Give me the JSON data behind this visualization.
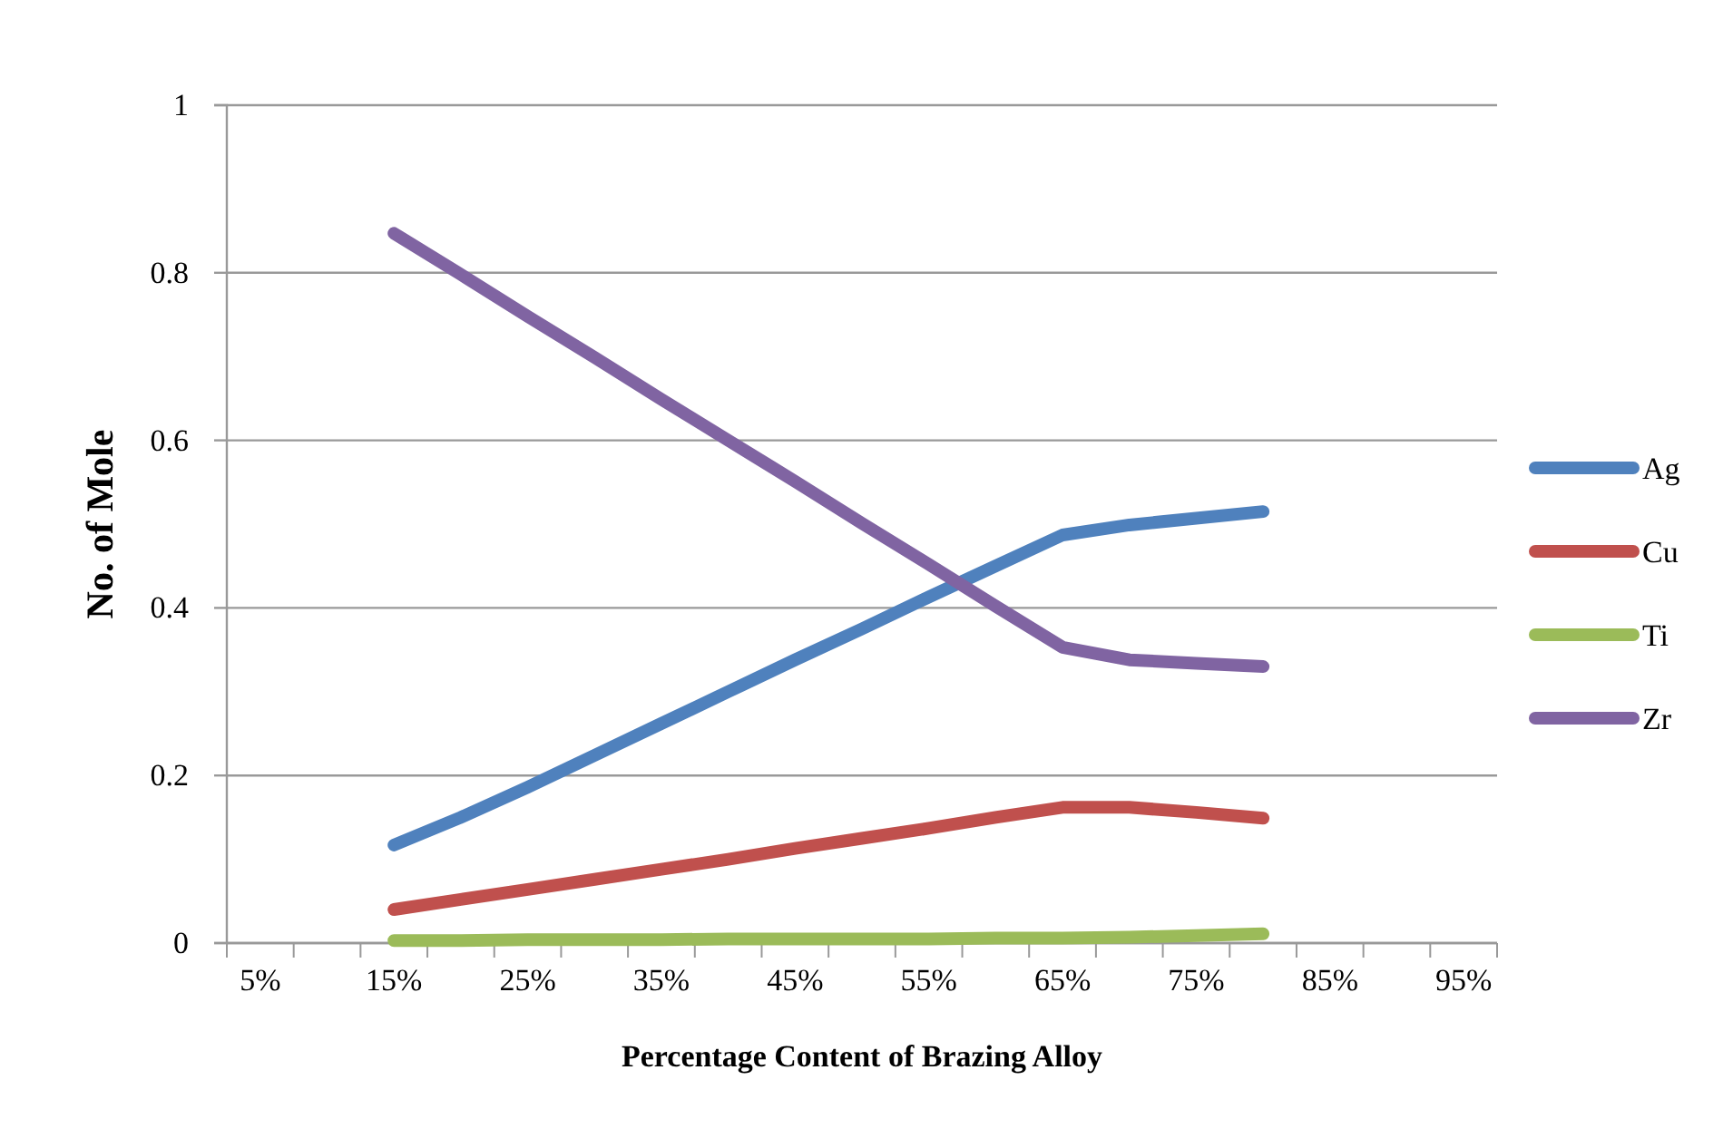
{
  "chart_data": {
    "type": "line",
    "xlabel": "Percentage Content of Brazing Alloy",
    "ylabel": "No. of Mole",
    "categories": [
      "5%",
      null,
      "15%",
      null,
      "25%",
      null,
      "35%",
      null,
      "45%",
      null,
      "55%",
      null,
      "65%",
      null,
      "75%",
      null,
      "85%",
      null,
      "95%"
    ],
    "ylim": [
      0,
      1
    ],
    "yticks": [
      0,
      0.2,
      0.4,
      0.6,
      0.8,
      1
    ],
    "grid": "y",
    "legend": "right",
    "series": [
      {
        "name": "Ag",
        "color": "#4f81bd",
        "values": [
          null,
          null,
          0.117,
          0.15,
          0.186,
          0.224,
          0.262,
          0.3,
          0.338,
          0.375,
          0.413,
          0.45,
          0.487,
          0.499,
          0.507,
          0.515,
          null,
          null,
          null
        ]
      },
      {
        "name": "Cu",
        "color": "#c0504d",
        "values": [
          null,
          null,
          0.04,
          0.052,
          0.064,
          0.076,
          0.088,
          0.1,
          0.113,
          0.125,
          0.137,
          0.15,
          0.162,
          0.162,
          0.156,
          0.149,
          null,
          null,
          null
        ]
      },
      {
        "name": "Ti",
        "color": "#9bbb59",
        "values": [
          null,
          null,
          0.003,
          0.003,
          0.004,
          0.004,
          0.004,
          0.005,
          0.005,
          0.005,
          0.005,
          0.006,
          0.006,
          0.007,
          0.009,
          0.011,
          null,
          null,
          null
        ]
      },
      {
        "name": "Zr",
        "color": "#8064a2",
        "values": [
          null,
          null,
          0.847,
          0.798,
          0.748,
          0.699,
          0.649,
          0.6,
          0.551,
          0.501,
          0.452,
          0.402,
          0.353,
          0.338,
          0.334,
          0.33,
          null,
          null,
          null
        ]
      }
    ]
  }
}
